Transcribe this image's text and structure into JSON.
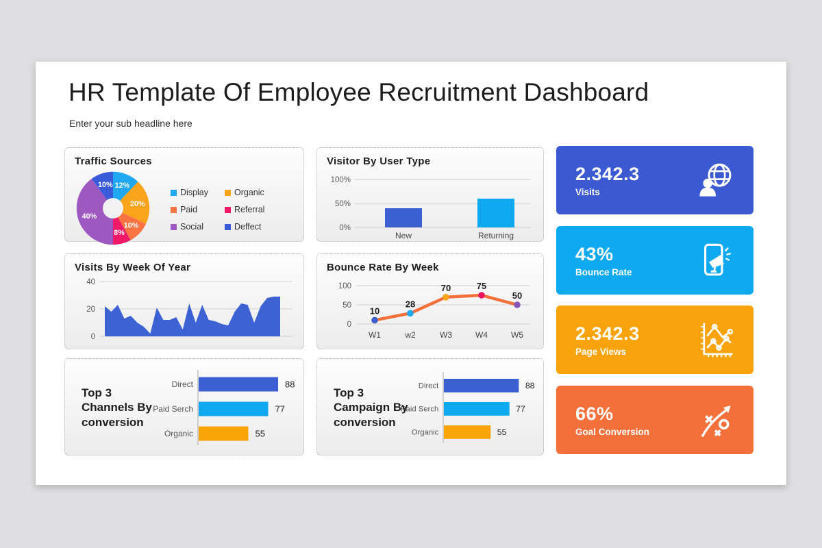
{
  "header": {
    "title": "HR Template Of Employee Recruitment Dashboard",
    "subtitle": "Enter your sub headline here"
  },
  "chart_data": [
    {
      "type": "pie",
      "title": "Traffic Sources",
      "labels": [
        "Display",
        "Organic",
        "Paid",
        "Referral",
        "Social",
        "Deffect"
      ],
      "values": [
        12,
        20,
        10,
        8,
        40,
        10
      ],
      "data_labels": [
        "12%",
        "20%",
        "10%",
        "8%",
        "40%",
        "10%"
      ],
      "colors": [
        "#1FA8F1",
        "#F9A41B",
        "#F97442",
        "#EE1A67",
        "#9D59C0",
        "#3A5BD9"
      ],
      "legend_position": "right",
      "donut": true
    },
    {
      "type": "bar",
      "title": "Visitor By User Type",
      "categories": [
        "New",
        "Returning"
      ],
      "values": [
        40,
        60
      ],
      "colors": [
        "#3C5FD2",
        "#0FA9F2"
      ],
      "ylim": [
        0,
        100
      ],
      "yticks": [
        "0%",
        "50%",
        "100%"
      ],
      "grid": true
    },
    {
      "type": "area",
      "title": "Visits By Week Of Year",
      "values": [
        22,
        18,
        23,
        13,
        15,
        10,
        7,
        2,
        21,
        12,
        12,
        14,
        5,
        24,
        10,
        23,
        12,
        11,
        9,
        8,
        18,
        24,
        23,
        10,
        22,
        28,
        29,
        29
      ],
      "color": "#3D62D4",
      "ylim": [
        0,
        40
      ],
      "yticks": [
        "0",
        "20",
        "40"
      ],
      "grid": true
    },
    {
      "type": "line",
      "title": "Bounce Rate By Week",
      "categories": [
        "W1",
        "w2",
        "W3",
        "W4",
        "W5"
      ],
      "values": [
        10,
        28,
        70,
        75,
        50
      ],
      "data_labels": [
        "10",
        "28",
        "70",
        "75",
        "50"
      ],
      "line_color": "#F2713B",
      "point_colors": [
        "#3A5FD0",
        "#1FA8F1",
        "#F9A41B",
        "#E8175D",
        "#8B56BC"
      ],
      "ylim": [
        0,
        100
      ],
      "yticks": [
        "0",
        "50",
        "100"
      ],
      "grid": true
    },
    {
      "type": "hbar",
      "title": "Top 3\nChannels By\nconversion",
      "categories": [
        "Direct",
        "Paid Serch",
        "Organic"
      ],
      "values": [
        88,
        77,
        55
      ],
      "data_labels": [
        "88",
        "77",
        "55"
      ],
      "colors": [
        "#3C5FD2",
        "#0FA9F2",
        "#F9A408"
      ],
      "xlim": [
        0,
        100
      ]
    },
    {
      "type": "hbar",
      "title": "Top 3\nCampaign By\nconversion",
      "categories": [
        "Direct",
        "Paid Serch",
        "Organic"
      ],
      "values": [
        88,
        77,
        55
      ],
      "data_labels": [
        "88",
        "77",
        "55"
      ],
      "colors": [
        "#3C5FD2",
        "#0FA9F2",
        "#F9A408"
      ],
      "xlim": [
        0,
        100
      ]
    }
  ],
  "kpi_cards": [
    {
      "value": "2.342.3",
      "label": "Visits",
      "color": "#3B5AD2",
      "icon": "user-globe-icon"
    },
    {
      "value": "43%",
      "label": "Bounce Rate",
      "color": "#0FA9F0",
      "icon": "phone-megaphone-icon"
    },
    {
      "value": "2.342.3",
      "label": "Page Views",
      "color": "#F9A30C",
      "icon": "line-chart-icon"
    },
    {
      "value": "66%",
      "label": "Goal Conversion",
      "color": "#F4703A",
      "icon": "strategy-icon"
    }
  ]
}
